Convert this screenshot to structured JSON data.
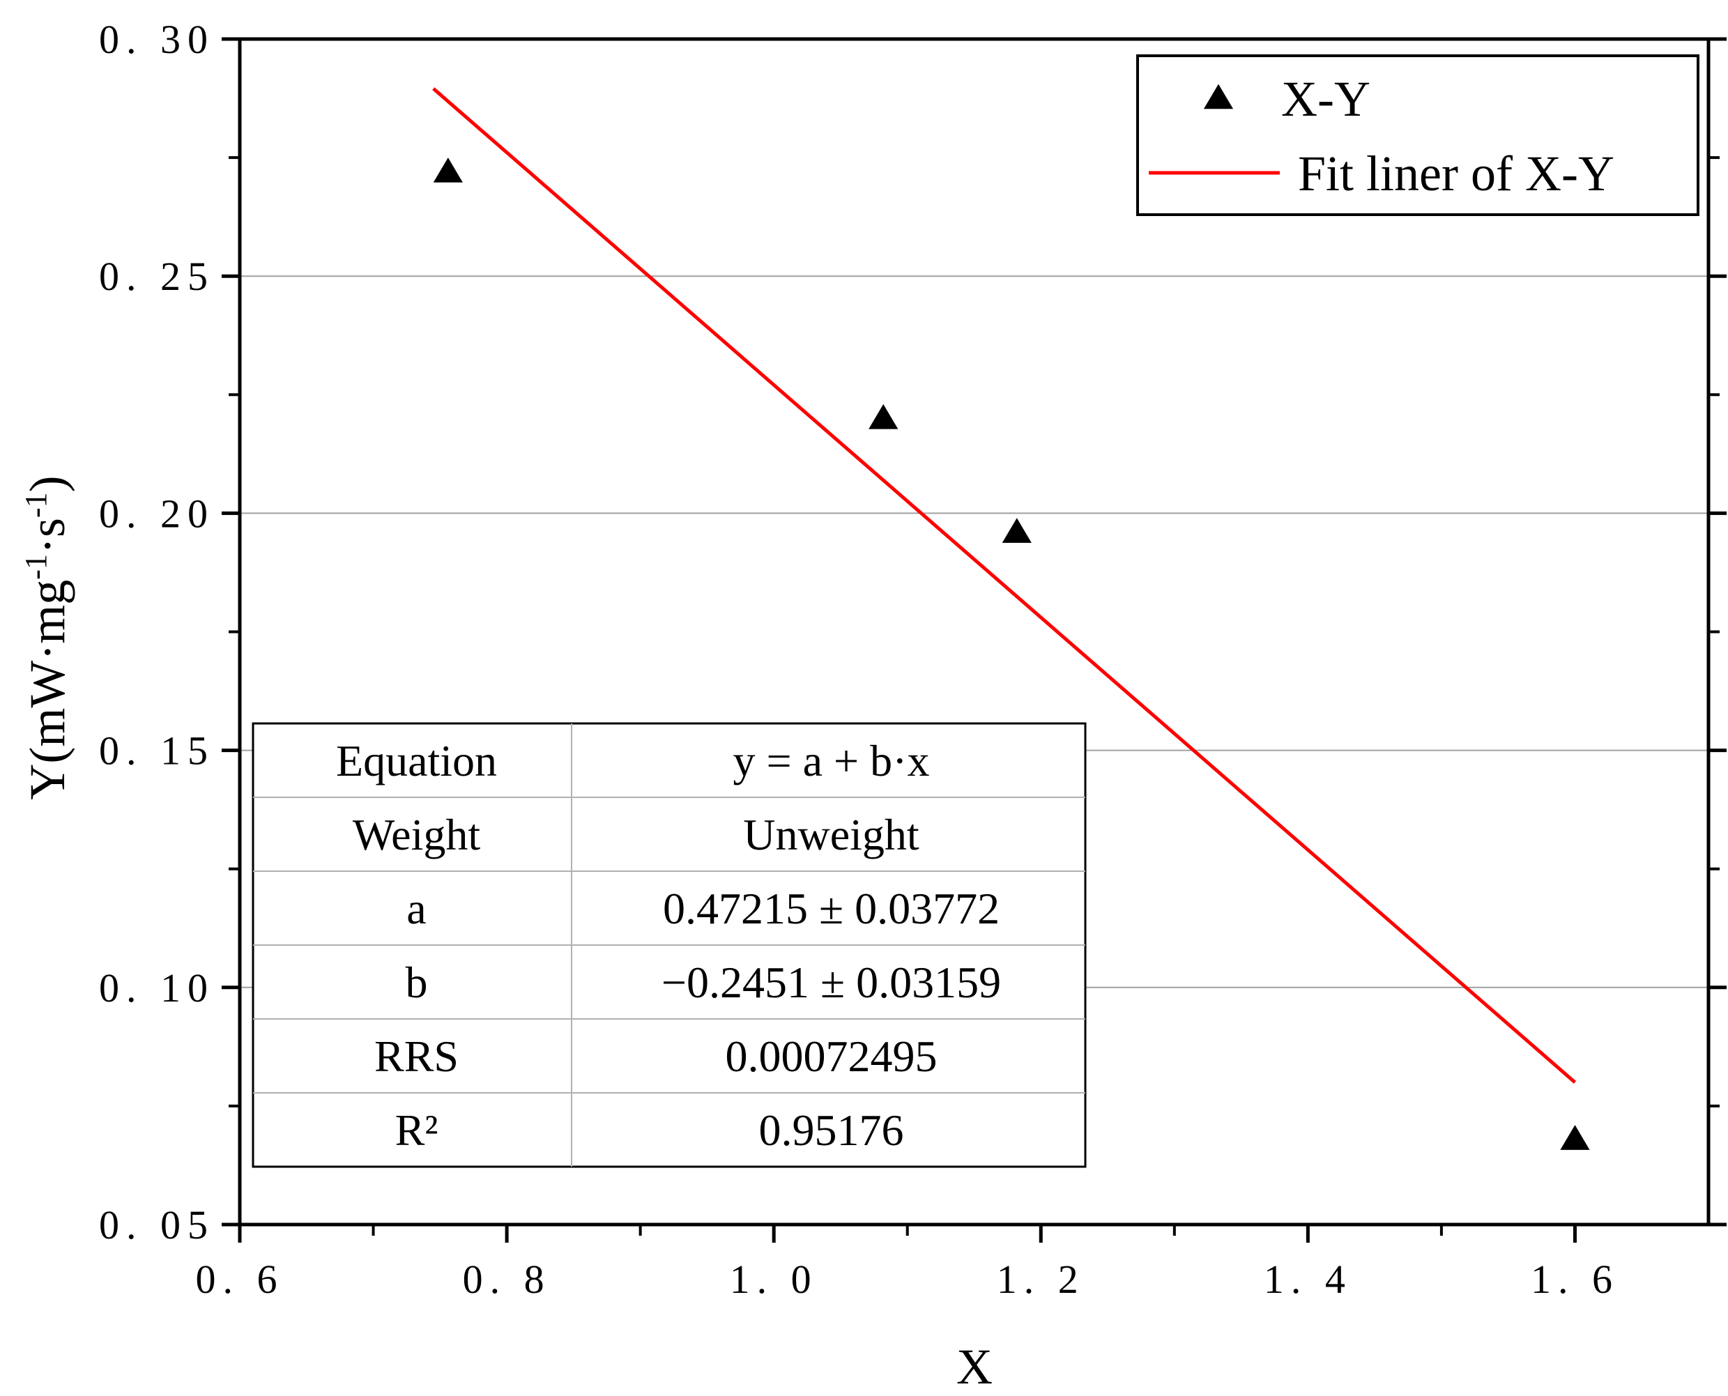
{
  "chart_data": {
    "type": "scatter",
    "title": "",
    "xlabel": "X",
    "ylabel": "Y(mW·mg-1·s-1)",
    "ylabel_parts": {
      "base": "Y(mW·mg",
      "exp1": "-1",
      "mid": "·s",
      "exp2": "-1",
      "end": ")"
    },
    "xlim": [
      0.6,
      1.7
    ],
    "ylim": [
      0.05,
      0.3
    ],
    "x_ticks": [
      0.6,
      0.8,
      1.0,
      1.2,
      1.4,
      1.6
    ],
    "x_tick_labels": [
      "0. 6",
      "0. 8",
      "1. 0",
      "1. 2",
      "1. 4",
      "1. 6"
    ],
    "y_ticks": [
      0.05,
      0.1,
      0.15,
      0.2,
      0.25,
      0.3
    ],
    "y_tick_labels": [
      "0. 05",
      "0. 10",
      "0. 15",
      "0. 20",
      "0. 25",
      "0. 30"
    ],
    "grid": "horizontal",
    "series": [
      {
        "name": "X-Y",
        "kind": "scatter",
        "marker": "triangle",
        "color": "#000000",
        "x": [
          0.756,
          1.082,
          1.182,
          1.6
        ],
        "y": [
          0.272,
          0.22,
          0.196,
          0.068
        ]
      },
      {
        "name": "Fit liner of X-Y",
        "kind": "line",
        "color": "#ff0000",
        "intercept": 0.47215,
        "slope": -0.2451,
        "x_range": [
          0.745,
          1.6
        ]
      }
    ],
    "legend": {
      "placement": "top-right",
      "entries": [
        "X-Y",
        "Fit liner of X-Y"
      ]
    },
    "fit_table": {
      "placement": "bottom-left",
      "rows": [
        {
          "key": "Equation",
          "value": "y = a + b·x"
        },
        {
          "key": "Weight",
          "value": "Unweight"
        },
        {
          "key": "a",
          "value": "0.47215 ± 0.03772"
        },
        {
          "key": "b",
          "value": "−0.2451 ± 0.03159"
        },
        {
          "key": "RRS",
          "value": "0.00072495"
        },
        {
          "key": "R²",
          "value": "0.95176"
        }
      ]
    }
  }
}
